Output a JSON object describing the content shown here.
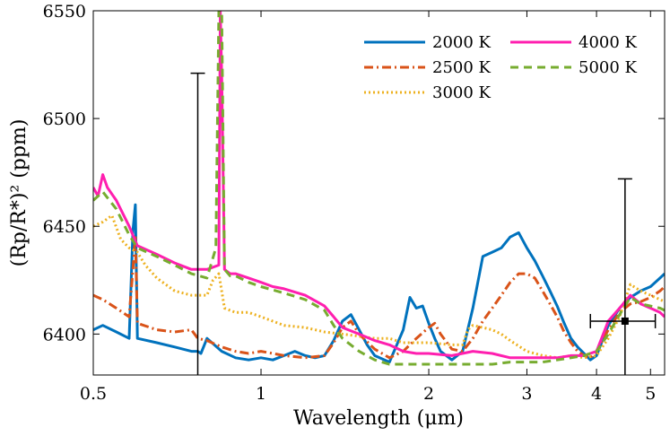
{
  "chart_data": {
    "type": "line",
    "xlabel": "Wavelength (μm)",
    "ylabel": "(Rp/R*)² (ppm)",
    "xscale": "log",
    "xlim": [
      0.5,
      5.3
    ],
    "ylim": [
      6381,
      6550
    ],
    "grid": false,
    "legend_position": "top-right",
    "x_ticks": [
      {
        "value": 0.5,
        "label": "0.5"
      },
      {
        "value": 1,
        "label": "1"
      },
      {
        "value": 2,
        "label": "2"
      },
      {
        "value": 3,
        "label": "3"
      },
      {
        "value": 4,
        "label": "4"
      },
      {
        "value": 5,
        "label": "5"
      }
    ],
    "y_ticks": [
      {
        "value": 6400,
        "label": "6400"
      },
      {
        "value": 6450,
        "label": "6450"
      },
      {
        "value": 6500,
        "label": "6500"
      },
      {
        "value": 6550,
        "label": "6550"
      }
    ],
    "series": [
      {
        "name": "2000 K",
        "color": "#0072BD",
        "dash": "solid",
        "x": [
          0.5,
          0.52,
          0.55,
          0.58,
          0.589,
          0.595,
          0.6,
          0.65,
          0.7,
          0.75,
          0.77,
          0.78,
          0.8,
          0.85,
          0.9,
          0.95,
          1.0,
          1.05,
          1.1,
          1.15,
          1.2,
          1.25,
          1.3,
          1.35,
          1.4,
          1.45,
          1.5,
          1.55,
          1.6,
          1.7,
          1.8,
          1.85,
          1.9,
          1.95,
          2.0,
          2.05,
          2.1,
          2.2,
          2.3,
          2.4,
          2.5,
          2.6,
          2.7,
          2.8,
          2.9,
          3.0,
          3.1,
          3.2,
          3.3,
          3.4,
          3.5,
          3.6,
          3.7,
          3.8,
          3.9,
          4.0,
          4.2,
          4.4,
          4.6,
          4.8,
          5.0,
          5.2,
          5.3
        ],
        "values": [
          6402,
          6404,
          6401,
          6398,
          6448,
          6460,
          6398,
          6396,
          6394,
          6392,
          6392,
          6391,
          6398,
          6392,
          6389,
          6388,
          6389,
          6388,
          6390,
          6392,
          6390,
          6389,
          6390,
          6397,
          6406,
          6409,
          6402,
          6395,
          6390,
          6387,
          6402,
          6417,
          6412,
          6413,
          6405,
          6398,
          6392,
          6388,
          6392,
          6412,
          6436,
          6438,
          6440,
          6445,
          6447,
          6440,
          6434,
          6427,
          6420,
          6413,
          6405,
          6398,
          6394,
          6391,
          6388,
          6390,
          6404,
          6412,
          6417,
          6420,
          6422,
          6426,
          6428
        ]
      },
      {
        "name": "2500 K",
        "color": "#D95319",
        "dash": "dashdot",
        "x": [
          0.5,
          0.52,
          0.55,
          0.58,
          0.589,
          0.595,
          0.6,
          0.65,
          0.7,
          0.75,
          0.77,
          0.8,
          0.85,
          0.9,
          0.95,
          1.0,
          1.05,
          1.1,
          1.2,
          1.3,
          1.35,
          1.4,
          1.45,
          1.5,
          1.6,
          1.7,
          1.8,
          1.9,
          2.0,
          2.05,
          2.1,
          2.2,
          2.3,
          2.4,
          2.5,
          2.6,
          2.7,
          2.8,
          2.9,
          3.0,
          3.1,
          3.2,
          3.3,
          3.4,
          3.5,
          3.6,
          3.7,
          3.8,
          3.9,
          4.0,
          4.2,
          4.4,
          4.6,
          4.8,
          5.0,
          5.2,
          5.3
        ],
        "values": [
          6418,
          6416,
          6412,
          6408,
          6430,
          6446,
          6405,
          6402,
          6401,
          6402,
          6398,
          6397,
          6394,
          6392,
          6391,
          6392,
          6391,
          6390,
          6389,
          6390,
          6396,
          6403,
          6406,
          6400,
          6393,
          6389,
          6392,
          6398,
          6403,
          6405,
          6400,
          6393,
          6392,
          6398,
          6406,
          6412,
          6418,
          6424,
          6428,
          6428,
          6426,
          6420,
          6414,
          6408,
          6401,
          6396,
          6392,
          6390,
          6389,
          6392,
          6402,
          6410,
          6414,
          6415,
          6417,
          6420,
          6422
        ]
      },
      {
        "name": "3000 K",
        "color": "#EDB120",
        "dash": "dotted",
        "x": [
          0.5,
          0.52,
          0.54,
          0.56,
          0.58,
          0.6,
          0.62,
          0.65,
          0.7,
          0.75,
          0.8,
          0.82,
          0.84,
          0.86,
          0.9,
          0.95,
          1.0,
          1.1,
          1.2,
          1.3,
          1.4,
          1.5,
          1.6,
          1.7,
          1.8,
          2.0,
          2.2,
          2.3,
          2.35,
          2.4,
          2.5,
          2.6,
          2.7,
          2.8,
          3.0,
          3.2,
          3.4,
          3.6,
          3.8,
          4.0,
          4.2,
          4.4,
          4.6,
          4.8,
          5.0,
          5.2,
          5.3
        ],
        "values": [
          6450,
          6452,
          6455,
          6444,
          6440,
          6438,
          6432,
          6426,
          6420,
          6418,
          6418,
          6425,
          6428,
          6412,
          6410,
          6410,
          6408,
          6404,
          6403,
          6401,
          6400,
          6399,
          6398,
          6398,
          6396,
          6396,
          6395,
          6395,
          6402,
          6404,
          6403,
          6402,
          6400,
          6397,
          6392,
          6390,
          6389,
          6390,
          6389,
          6390,
          6398,
          6408,
          6423,
          6420,
          6418,
          6416,
          6415
        ]
      },
      {
        "name": "4000 K",
        "color": "#FF1FAF",
        "dash": "solid",
        "x": [
          0.5,
          0.51,
          0.52,
          0.53,
          0.55,
          0.58,
          0.6,
          0.65,
          0.7,
          0.75,
          0.8,
          0.84,
          0.845,
          0.85,
          0.86,
          0.88,
          0.9,
          0.95,
          1.0,
          1.05,
          1.1,
          1.2,
          1.3,
          1.35,
          1.4,
          1.5,
          1.6,
          1.7,
          1.8,
          1.9,
          2.0,
          2.2,
          2.4,
          2.6,
          2.8,
          3.0,
          3.2,
          3.4,
          3.6,
          3.8,
          4.0,
          4.2,
          4.4,
          4.6,
          4.8,
          5.0,
          5.2,
          5.3
        ],
        "values": [
          6468,
          6464,
          6474,
          6468,
          6462,
          6450,
          6441,
          6437,
          6433,
          6430,
          6430,
          6432,
          6550,
          6520,
          6430,
          6428,
          6428,
          6426,
          6424,
          6422,
          6421,
          6418,
          6413,
          6408,
          6403,
          6400,
          6397,
          6395,
          6392,
          6391,
          6391,
          6390,
          6392,
          6391,
          6389,
          6389,
          6389,
          6389,
          6390,
          6390,
          6392,
          6406,
          6412,
          6418,
          6414,
          6412,
          6410,
          6408
        ]
      },
      {
        "name": "5000 K",
        "color": "#77AC30",
        "dash": "dashed",
        "x": [
          0.5,
          0.52,
          0.55,
          0.58,
          0.6,
          0.65,
          0.7,
          0.75,
          0.8,
          0.83,
          0.84,
          0.845,
          0.85,
          0.86,
          0.88,
          0.9,
          0.95,
          1.0,
          1.1,
          1.2,
          1.3,
          1.35,
          1.4,
          1.5,
          1.6,
          1.7,
          1.8,
          2.0,
          2.2,
          2.4,
          2.6,
          2.8,
          3.0,
          3.2,
          3.4,
          3.6,
          3.8,
          4.0,
          4.2,
          4.4,
          4.6,
          4.8,
          5.0,
          5.2,
          5.3
        ],
        "values": [
          6462,
          6466,
          6458,
          6446,
          6440,
          6436,
          6432,
          6428,
          6426,
          6440,
          6550,
          6550,
          6550,
          6430,
          6427,
          6427,
          6424,
          6422,
          6419,
          6416,
          6411,
          6404,
          6398,
          6392,
          6388,
          6386,
          6386,
          6386,
          6386,
          6386,
          6386,
          6387,
          6387,
          6387,
          6388,
          6389,
          6390,
          6392,
          6400,
          6409,
          6417,
          6414,
          6413,
          6412,
          6411
        ]
      }
    ],
    "error_bars": [
      {
        "x": 0.77,
        "y": 6450,
        "y_low": 6381,
        "y_high": 6521
      },
      {
        "x": 4.5,
        "y": 6406,
        "y_low": 6381,
        "y_high": 6472,
        "x_low": 3.9,
        "x_high": 5.1
      }
    ]
  }
}
